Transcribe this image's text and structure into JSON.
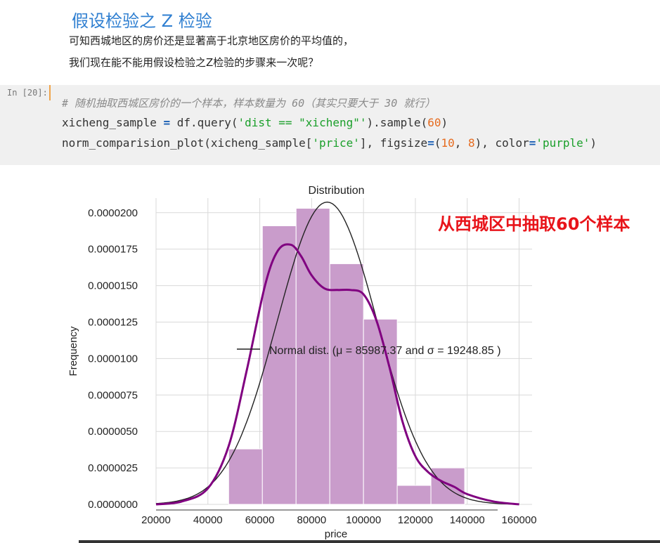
{
  "markdown": {
    "title": "假设检验之 Z 检验",
    "line1": "可知西城地区的房价还是显著高于北京地区房价的平均值的，",
    "line2": "我们现在能不能用假设检验之Z检验的步骤来一次呢？"
  },
  "code_cell": {
    "prompt": "In [20]:",
    "comment": "# 随机抽取西城区房价的一个样本，样本数量为 60（其实只要大于 30 就行）",
    "line2": {
      "a": "xicheng_sample ",
      "op": "=",
      "b": " df.query(",
      "s": "'dist == \"xicheng\"'",
      "c": ").sample(",
      "n": "60",
      "d": ")"
    },
    "line3": {
      "a": "norm_comparision_plot(xicheng_sample[",
      "s1": "'price'",
      "b": "], figsize",
      "op": "=",
      "c": "(",
      "n1": "10",
      "d": ", ",
      "n2": "8",
      "e": "), color",
      "op2": "=",
      "s2": "'purple'",
      "f": ")"
    }
  },
  "annotation": "从西城区中抽取60个样本",
  "chart_data": {
    "type": "bar",
    "title": "Distribution",
    "xlabel": "price",
    "ylabel": "Frequency",
    "xlim": [
      20000,
      165000
    ],
    "ylim": [
      0,
      2.1e-05
    ],
    "x_ticks": [
      "20000",
      "40000",
      "60000",
      "80000",
      "100000",
      "120000",
      "140000",
      "160000"
    ],
    "x_tick_values": [
      20000,
      40000,
      60000,
      80000,
      100000,
      120000,
      140000,
      160000
    ],
    "y_ticks": [
      "0.0000000",
      "0.0000025",
      "0.0000050",
      "0.0000075",
      "0.0000100",
      "0.0000125",
      "0.0000150",
      "0.0000175",
      "0.0000200"
    ],
    "y_tick_values": [
      0,
      2.5e-06,
      5e-06,
      7.5e-06,
      1e-05,
      1.25e-05,
      1.5e-05,
      1.75e-05,
      2e-05
    ],
    "bins": [
      {
        "x0": 48000,
        "x1": 61000,
        "value": 3.8e-06
      },
      {
        "x0": 61000,
        "x1": 74000,
        "value": 1.91e-05
      },
      {
        "x0": 74000,
        "x1": 87000,
        "value": 2.03e-05
      },
      {
        "x0": 87000,
        "x1": 100000,
        "value": 1.65e-05
      },
      {
        "x0": 100000,
        "x1": 113000,
        "value": 1.27e-05
      },
      {
        "x0": 113000,
        "x1": 126000,
        "value": 1.3e-06
      },
      {
        "x0": 126000,
        "x1": 139000,
        "value": 2.5e-06
      }
    ],
    "kde": {
      "x": [
        20000,
        30000,
        40000,
        48000,
        55000,
        62000,
        67000,
        72000,
        76000,
        80000,
        85000,
        90000,
        95000,
        100000,
        105000,
        110000,
        115000,
        120000,
        125000,
        130000,
        135000,
        140000,
        150000,
        160000
      ],
      "y": [
        0.0,
        2e-07,
        1.1e-06,
        4e-06,
        9.2e-06,
        1.5e-05,
        1.74e-05,
        1.78e-05,
        1.7e-05,
        1.57e-05,
        1.48e-05,
        1.47e-05,
        1.47e-05,
        1.44e-05,
        1.26e-05,
        9.4e-06,
        5.7e-06,
        3.3e-06,
        2.2e-06,
        1.6e-06,
        1.2e-06,
        7e-07,
        2e-07,
        0.0
      ]
    },
    "normal_fit": {
      "mu": 85987.37,
      "sigma": 19248.85
    },
    "legend": {
      "label": "Normal dist. (μ =  85987.37 and σ =  19248.85 )",
      "placement": "center"
    },
    "colors": {
      "bars": "#c99ccb",
      "kde": "#800080",
      "normal": "#222222",
      "grid": "#d9d9d9"
    }
  }
}
